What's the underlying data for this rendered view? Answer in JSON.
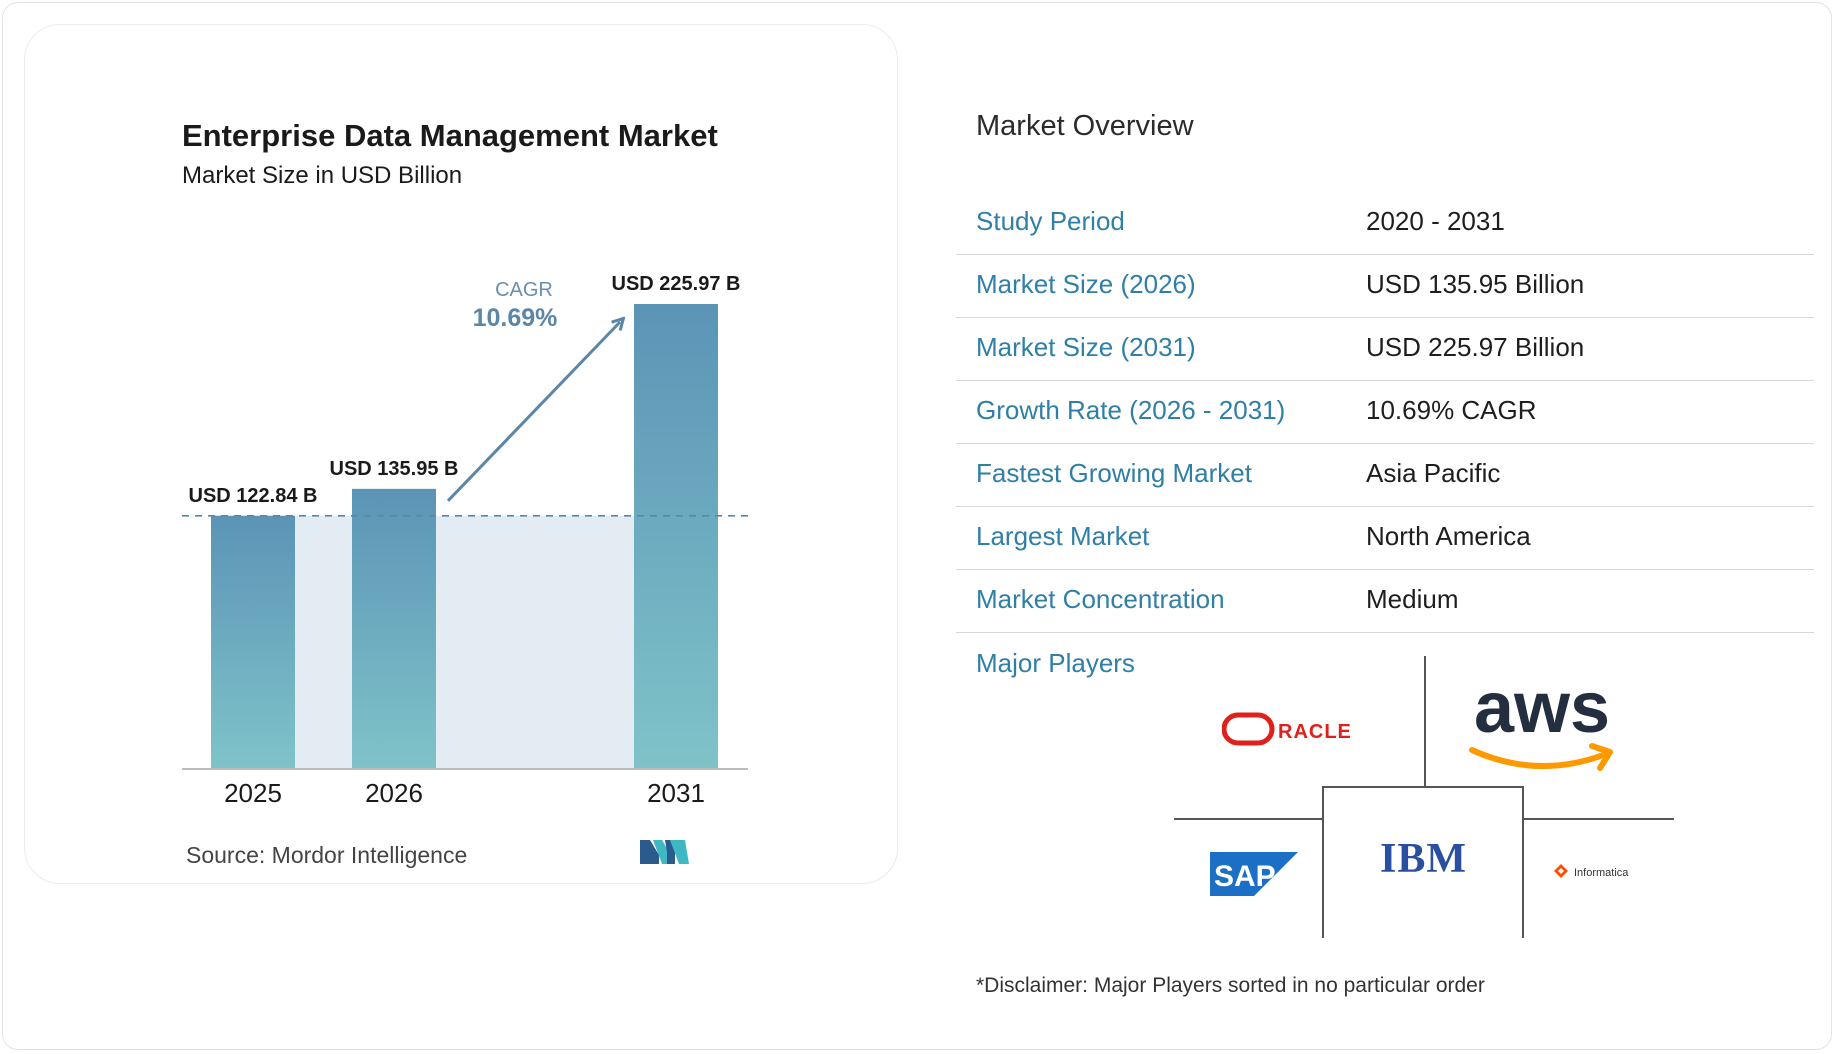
{
  "chart_data": {
    "type": "bar",
    "title": "Enterprise Data Management Market",
    "subtitle": "Market Size in USD Billion",
    "categories": [
      "2025",
      "2026",
      "2031"
    ],
    "values": [
      122.84,
      135.95,
      225.97
    ],
    "data_labels": [
      "USD 122.84 B",
      "USD 135.95 B",
      "USD 225.97 B"
    ],
    "cagr_label": "CAGR",
    "cagr_value": "10.69%",
    "ylim": [
      0,
      225.97
    ],
    "grid": false,
    "source_label": "Source:",
    "source_name": "Mordor Intelligence",
    "colors": {
      "bar_top": "#5b94b6",
      "bar_bottom": "#7fc3c9",
      "band": "#e4ecf3",
      "arrow": "#5a86a8",
      "baseline": "#bbbbbb"
    }
  },
  "overview": {
    "title": "Market Overview",
    "rows": [
      {
        "label": "Study Period",
        "value": "2020 - 2031"
      },
      {
        "label": "Market Size (2026)",
        "value": "USD 135.95 Billion"
      },
      {
        "label": "Market Size (2031)",
        "value": "USD 225.97 Billion"
      },
      {
        "label": "Growth Rate (2026 - 2031)",
        "value": "10.69% CAGR"
      },
      {
        "label": "Fastest Growing Market",
        "value": "Asia Pacific"
      },
      {
        "label": "Largest Market",
        "value": "North America"
      },
      {
        "label": "Market Concentration",
        "value": "Medium"
      }
    ]
  },
  "major_players": {
    "label": "Major Players",
    "logos": [
      "ORACLE",
      "aws",
      "SAP",
      "IBM",
      "Informatica"
    ]
  },
  "disclaimer": "*Disclaimer: Major Players sorted in no particular order",
  "brand_colors": {
    "label_blue": "#2f7fa6",
    "oracle_red": "#e0201b",
    "aws_orange": "#ff9900",
    "sap_blue": "#1b6fc4",
    "ibm_blue": "#2a4fa0",
    "informatica_orange": "#ff4d00"
  }
}
